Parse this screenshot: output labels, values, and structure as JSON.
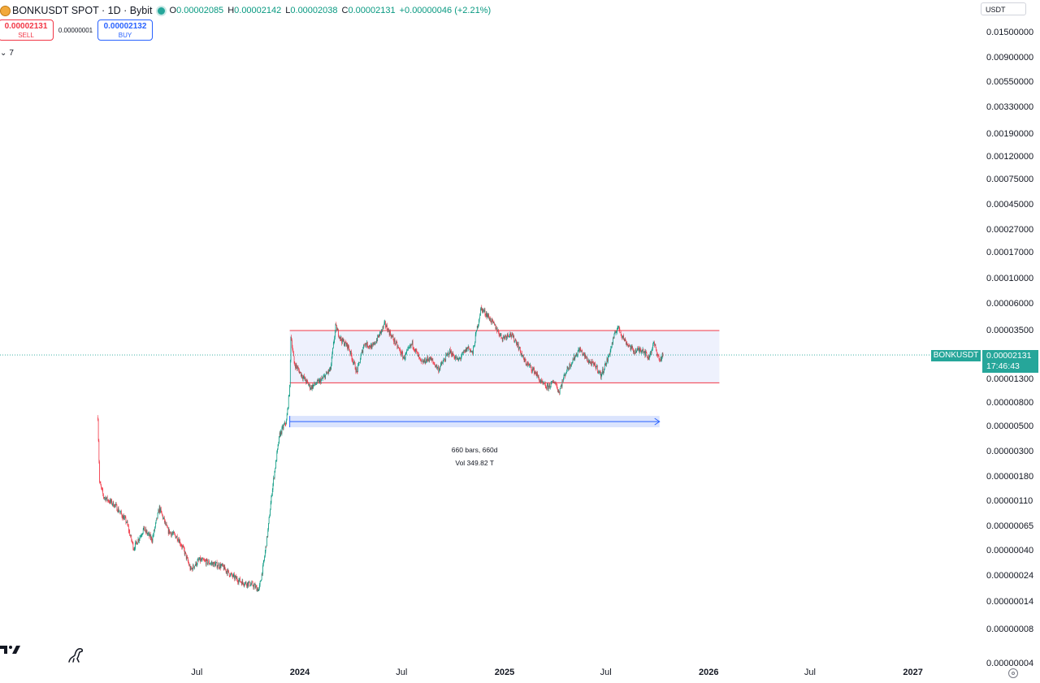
{
  "header": {
    "title": "BONKUSDT SPOT · 1D · Bybit",
    "ohlc": [
      {
        "key": "O",
        "value": "0.00002085"
      },
      {
        "key": "H",
        "value": "0.00002142"
      },
      {
        "key": "L",
        "value": "0.00002038"
      },
      {
        "key": "C",
        "value": "0.00002131"
      },
      {
        "key": "",
        "value": "+0.00000046 (+2.21%)"
      }
    ]
  },
  "trade": {
    "sell_price": "0.00002131",
    "sell_label": "SELL",
    "spread": "0.00000001",
    "buy_price": "0.00002132",
    "buy_label": "BUY"
  },
  "collapse_count": "7",
  "axis_currency": "USDT",
  "last_price": {
    "symbol": "BONKUSDT",
    "price": "0.00002131",
    "countdown": "17:46:43"
  },
  "colors": {
    "up": "#089981",
    "down": "#f23645",
    "range_fill": "#eef1fd",
    "range_border": "#f23645",
    "measure": "#2962ff"
  },
  "chart_data": {
    "type": "candlestick",
    "y_scale": "log",
    "y_ticks": [
      "0.01500000",
      "0.00900000",
      "0.00550000",
      "0.00330000",
      "0.00190000",
      "0.00120000",
      "0.00075000",
      "0.00045000",
      "0.00027000",
      "0.00017000",
      "0.00010000",
      "0.00006000",
      "0.00003500",
      "0.00001300",
      "0.00000800",
      "0.00000500",
      "0.00000300",
      "0.00000180",
      "0.00000110",
      "0.00000065",
      "0.00000040",
      "0.00000024",
      "0.00000014",
      "0.00000008",
      "0.00000004"
    ],
    "x_ticks": [
      {
        "label": "Jul",
        "date": "2023-07-01",
        "bold": false
      },
      {
        "label": "2024",
        "date": "2024-01-01",
        "bold": true
      },
      {
        "label": "Jul",
        "date": "2024-07-01",
        "bold": false
      },
      {
        "label": "2025",
        "date": "2025-01-01",
        "bold": true
      },
      {
        "label": "Jul",
        "date": "2025-07-01",
        "bold": false
      },
      {
        "label": "2026",
        "date": "2026-01-01",
        "bold": true
      },
      {
        "label": "Jul",
        "date": "2026-07-01",
        "bold": false
      },
      {
        "label": "2027",
        "date": "2027-01-01",
        "bold": true
      }
    ],
    "price_path": [
      [
        "2023-01-05",
        6e-06
      ],
      [
        "2023-01-08",
        1.6e-06
      ],
      [
        "2023-01-15",
        1.2e-06
      ],
      [
        "2023-02-05",
        1e-06
      ],
      [
        "2023-02-25",
        7.2e-07
      ],
      [
        "2023-03-10",
        4.2e-07
      ],
      [
        "2023-03-28",
        6.2e-07
      ],
      [
        "2023-04-12",
        5e-07
      ],
      [
        "2023-04-25",
        9.5e-07
      ],
      [
        "2023-05-10",
        6e-07
      ],
      [
        "2023-05-28",
        5.2e-07
      ],
      [
        "2023-06-08",
        4e-07
      ],
      [
        "2023-06-20",
        2.7e-07
      ],
      [
        "2023-07-05",
        3.3e-07
      ],
      [
        "2023-07-25",
        3.1e-07
      ],
      [
        "2023-08-15",
        2.9e-07
      ],
      [
        "2023-09-01",
        2.4e-07
      ],
      [
        "2023-09-20",
        2.1e-07
      ],
      [
        "2023-10-08",
        2e-07
      ],
      [
        "2023-10-20",
        1.8e-07
      ],
      [
        "2023-10-28",
        3e-07
      ],
      [
        "2023-11-05",
        6e-07
      ],
      [
        "2023-11-12",
        1.3e-06
      ],
      [
        "2023-11-20",
        2.6e-06
      ],
      [
        "2023-11-26",
        4.2e-06
      ],
      [
        "2023-12-03",
        5e-06
      ],
      [
        "2023-12-08",
        5.5e-06
      ],
      [
        "2023-12-14",
        1.1e-05
      ],
      [
        "2023-12-16",
        3.2e-05
      ],
      [
        "2023-12-22",
        1.8e-05
      ],
      [
        "2024-01-05",
        1.4e-05
      ],
      [
        "2024-01-20",
        1.1e-05
      ],
      [
        "2024-02-10",
        1.3e-05
      ],
      [
        "2024-02-25",
        1.6e-05
      ],
      [
        "2024-03-05",
        3.8e-05
      ],
      [
        "2024-03-15",
        2.9e-05
      ],
      [
        "2024-03-28",
        2.5e-05
      ],
      [
        "2024-04-12",
        1.5e-05
      ],
      [
        "2024-04-25",
        2.7e-05
      ],
      [
        "2024-05-10",
        2.5e-05
      ],
      [
        "2024-05-25",
        3.4e-05
      ],
      [
        "2024-06-01",
        4e-05
      ],
      [
        "2024-06-15",
        3e-05
      ],
      [
        "2024-07-05",
        2e-05
      ],
      [
        "2024-07-20",
        2.7e-05
      ],
      [
        "2024-08-05",
        1.8e-05
      ],
      [
        "2024-08-20",
        2e-05
      ],
      [
        "2024-09-05",
        1.6e-05
      ],
      [
        "2024-09-25",
        2.3e-05
      ],
      [
        "2024-10-10",
        1.9e-05
      ],
      [
        "2024-10-28",
        2.5e-05
      ],
      [
        "2024-11-05",
        2.2e-05
      ],
      [
        "2024-11-12",
        3.5e-05
      ],
      [
        "2024-11-20",
        5.5e-05
      ],
      [
        "2024-12-01",
        4.8e-05
      ],
      [
        "2024-12-15",
        3.8e-05
      ],
      [
        "2024-12-28",
        3e-05
      ],
      [
        "2025-01-10",
        3.3e-05
      ],
      [
        "2025-01-22",
        2.8e-05
      ],
      [
        "2025-02-05",
        1.9e-05
      ],
      [
        "2025-02-25",
        1.5e-05
      ],
      [
        "2025-03-08",
        1.2e-05
      ],
      [
        "2025-03-18",
        1.1e-05
      ],
      [
        "2025-04-01",
        1.25e-05
      ],
      [
        "2025-04-08",
        1e-05
      ],
      [
        "2025-04-20",
        1.5e-05
      ],
      [
        "2025-05-05",
        2e-05
      ],
      [
        "2025-05-15",
        2.4e-05
      ],
      [
        "2025-05-30",
        1.9e-05
      ],
      [
        "2025-06-15",
        1.65e-05
      ],
      [
        "2025-06-22",
        1.4e-05
      ],
      [
        "2025-07-05",
        2e-05
      ],
      [
        "2025-07-15",
        3e-05
      ],
      [
        "2025-07-22",
        3.8e-05
      ],
      [
        "2025-08-05",
        2.8e-05
      ],
      [
        "2025-08-20",
        2.3e-05
      ],
      [
        "2025-09-05",
        2.4e-05
      ],
      [
        "2025-09-15",
        2e-05
      ],
      [
        "2025-09-25",
        2.7e-05
      ],
      [
        "2025-10-05",
        1.9e-05
      ],
      [
        "2025-10-11",
        2.13e-05
      ]
    ],
    "range_box": {
      "start": "2023-12-14",
      "end": "2026-01-20",
      "high": 3.5e-05,
      "low": 1.21e-05
    },
    "measure": {
      "start": "2023-12-14",
      "end": "2025-10-05",
      "price": 5.5e-06,
      "bars_label": "660 bars, 660d",
      "vol_label": "Vol 349.82 T"
    },
    "last_price": 2.131e-05
  }
}
